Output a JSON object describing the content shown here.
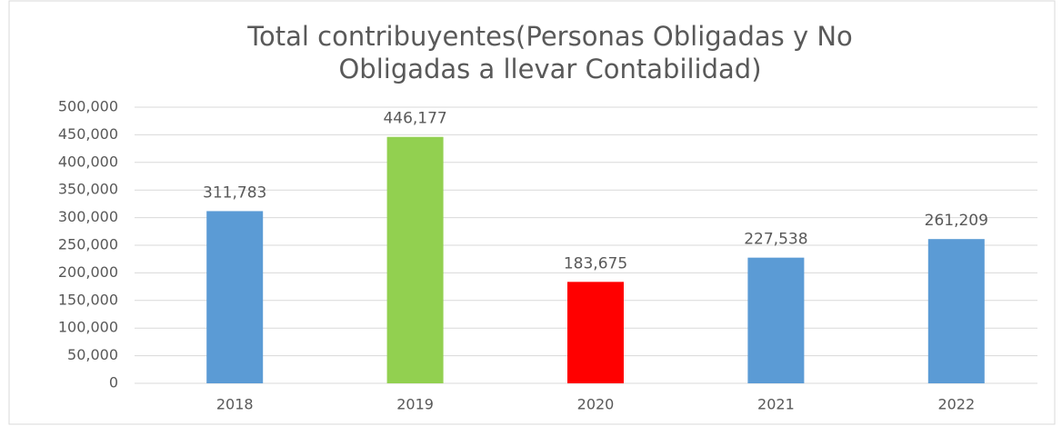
{
  "chart_data": {
    "type": "bar",
    "title": [
      "Total contribuyentes(Personas Obligadas y No",
      "Obligadas a llevar Contabilidad)"
    ],
    "categories": [
      "2018",
      "2019",
      "2020",
      "2021",
      "2022"
    ],
    "values": [
      311783,
      446177,
      183675,
      227538,
      261209
    ],
    "value_labels": [
      "311,783",
      "446,177",
      "183,675",
      "227,538",
      "261,209"
    ],
    "colors": [
      "#5b9bd5",
      "#92d050",
      "#ff0000",
      "#5b9bd5",
      "#5b9bd5"
    ],
    "ylim": [
      0,
      500000
    ],
    "yticks": [
      0,
      {
        "value": 50000,
        "label": "50,000"
      },
      {
        "value": 100000,
        "label": "100,000"
      },
      {
        "value": 150000,
        "label": "150,000"
      },
      {
        "value": 200000,
        "label": "200,000"
      },
      {
        "value": 250000,
        "label": "250,000"
      },
      {
        "value": 300000,
        "label": "300,000"
      },
      {
        "value": 350000,
        "label": "350,000"
      },
      {
        "value": 400000,
        "label": "400,000"
      },
      {
        "value": 450000,
        "label": "450,000"
      },
      {
        "value": 500000,
        "label": "500,000"
      }
    ],
    "grid": true
  }
}
